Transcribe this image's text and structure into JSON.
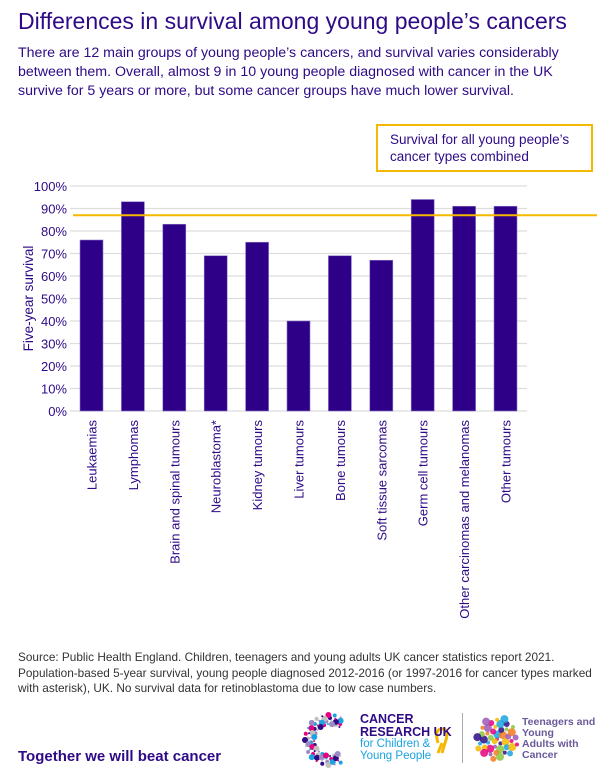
{
  "title": "Differences in survival among young people’s cancers",
  "intro": "There are 12 main groups of young people’s cancers, and survival varies considerably between them. Overall, almost 9 in 10 young people diagnosed with cancer in the UK survive for 5 years or more, but some cancer groups have much lower survival.",
  "legend": {
    "label": "Survival for all young people’s cancer types combined"
  },
  "chart_data": {
    "type": "bar",
    "title": "",
    "xlabel": "",
    "ylabel": "Five-year survival",
    "ylim": [
      0,
      100
    ],
    "yticks": [
      "0%",
      "10%",
      "20%",
      "30%",
      "40%",
      "50%",
      "60%",
      "70%",
      "80%",
      "90%",
      "100%"
    ],
    "grid": true,
    "categories": [
      "Leukaemias",
      "Lymphomas",
      "Brain and spinal tumours",
      "Neuroblastoma*",
      "Kidney tumours",
      "Liver tumours",
      "Bone tumours",
      "Soft tissue sarcomas",
      "Germ cell tumours",
      "Other carcinomas and melanomas",
      "Other tumours"
    ],
    "values": [
      76,
      93,
      83,
      69,
      75,
      40,
      69,
      67,
      94,
      91,
      91
    ],
    "reference_line": {
      "label": "Survival for all young people’s cancer types combined",
      "value": 87
    },
    "colors": {
      "bar": "#2e0087",
      "reference_line": "#f5b800",
      "grid": "#dddddd"
    }
  },
  "source": "Source: Public Health England. Children, teenagers and young adults UK cancer statistics report 2021. Population-based 5-year survival, young people diagnosed 2012-2016 (or 1997-2016 for cancer types marked with asterisk), UK. No survival data for retinoblastoma due to low case numbers.",
  "footer": {
    "tagline": "Together we will beat cancer",
    "cruk_logo": {
      "line1": "CANCER",
      "line2": "RESEARCH UK",
      "line3": "for Children &",
      "line4": "Young People"
    },
    "tya_logo": {
      "line1": "Teenagers and",
      "line2": "Young",
      "line3": "Adults with",
      "line4": "Cancer"
    }
  }
}
